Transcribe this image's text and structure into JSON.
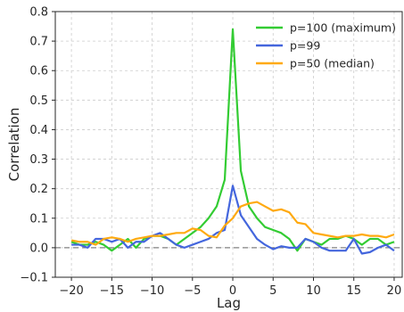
{
  "chart_data": {
    "type": "line",
    "xlabel": "Lag",
    "ylabel": "Correlation",
    "xlim": [
      -22,
      21
    ],
    "ylim": [
      -0.1,
      0.8
    ],
    "xticks": [
      -20,
      -15,
      -10,
      -5,
      0,
      5,
      10,
      15,
      20
    ],
    "yticks": [
      -0.1,
      0.0,
      0.1,
      0.2,
      0.3,
      0.4,
      0.5,
      0.6,
      0.7,
      0.8
    ],
    "grid": true,
    "legend": "top-right",
    "reference_line": {
      "y": 0.0,
      "style": "dashed",
      "color": "#808080"
    },
    "x": [
      -20,
      -19,
      -18,
      -17,
      -16,
      -15,
      -14,
      -13,
      -12,
      -11,
      -10,
      -9,
      -8,
      -7,
      -6,
      -5,
      -4,
      -3,
      -2,
      -1,
      0,
      1,
      2,
      3,
      4,
      5,
      6,
      7,
      8,
      9,
      10,
      11,
      12,
      13,
      14,
      15,
      16,
      17,
      18,
      19,
      20
    ],
    "series": [
      {
        "name": "p=100 (maximum)",
        "color": "#33cc33",
        "values": [
          0.02,
          0.01,
          0.01,
          0.02,
          0.01,
          -0.01,
          0.01,
          0.03,
          0.0,
          0.03,
          0.04,
          0.04,
          0.03,
          0.01,
          0.03,
          0.05,
          0.07,
          0.1,
          0.14,
          0.23,
          0.74,
          0.26,
          0.14,
          0.1,
          0.07,
          0.06,
          0.05,
          0.03,
          -0.01,
          0.03,
          0.02,
          0.01,
          0.03,
          0.03,
          0.04,
          0.03,
          0.01,
          0.03,
          0.03,
          0.01,
          0.02
        ]
      },
      {
        "name": "p=99",
        "color": "#4466dd",
        "values": [
          0.01,
          0.01,
          0.0,
          0.03,
          0.03,
          0.02,
          0.03,
          0.0,
          0.02,
          0.02,
          0.04,
          0.05,
          0.03,
          0.01,
          0.0,
          0.01,
          0.02,
          0.03,
          0.05,
          0.06,
          0.21,
          0.11,
          0.07,
          0.03,
          0.01,
          -0.005,
          0.005,
          0.0,
          0.0,
          0.03,
          0.02,
          0.0,
          -0.01,
          -0.01,
          -0.01,
          0.03,
          -0.02,
          -0.015,
          0.0,
          0.01,
          -0.01
        ]
      },
      {
        "name": "p=50 (median)",
        "color": "#ffaa11",
        "values": [
          0.025,
          0.02,
          0.02,
          0.01,
          0.03,
          0.035,
          0.03,
          0.02,
          0.03,
          0.035,
          0.04,
          0.04,
          0.045,
          0.05,
          0.05,
          0.065,
          0.06,
          0.04,
          0.035,
          0.075,
          0.1,
          0.14,
          0.15,
          0.155,
          0.14,
          0.125,
          0.13,
          0.12,
          0.085,
          0.08,
          0.05,
          0.045,
          0.04,
          0.035,
          0.04,
          0.04,
          0.045,
          0.04,
          0.04,
          0.035,
          0.045
        ]
      }
    ]
  }
}
